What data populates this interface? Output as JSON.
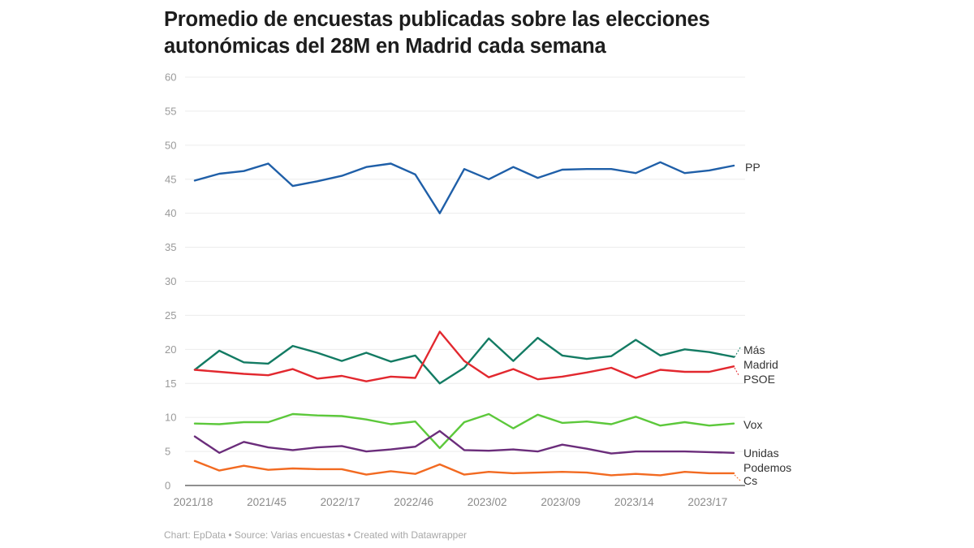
{
  "chart_data": {
    "type": "line",
    "title": "Promedio de encuestas publicadas sobre las elecciones autonómicas del 28M en Madrid cada semana",
    "xlabel": "",
    "ylabel": "",
    "ylim": [
      0,
      60
    ],
    "yticks": [
      0,
      5,
      10,
      15,
      20,
      25,
      30,
      35,
      40,
      45,
      50,
      55,
      60
    ],
    "grid": true,
    "legend": "inline-right",
    "x_tick_labels": [
      {
        "index": 0,
        "label": "2021/18"
      },
      {
        "index": 3,
        "label": "2021/45"
      },
      {
        "index": 6,
        "label": "2022/17"
      },
      {
        "index": 9,
        "label": "2022/46"
      },
      {
        "index": 12,
        "label": "2023/02"
      },
      {
        "index": 15,
        "label": "2023/09"
      },
      {
        "index": 18,
        "label": "2023/14"
      },
      {
        "index": 21,
        "label": "2023/17"
      }
    ],
    "n_points": 23,
    "series": [
      {
        "name": "PP",
        "label_lines": [
          "PP"
        ],
        "color": "#1f5fa8",
        "values": [
          44.8,
          45.8,
          46.2,
          47.3,
          44.0,
          44.7,
          45.5,
          46.8,
          47.3,
          45.7,
          40.0,
          46.5,
          45.0,
          46.8,
          45.2,
          46.4,
          46.5,
          46.5,
          45.9,
          47.5,
          45.9,
          46.3,
          47.0
        ]
      },
      {
        "name": "Más Madrid",
        "label_lines": [
          "Más",
          "Madrid"
        ],
        "color": "#137b63",
        "values": [
          17.0,
          19.8,
          18.1,
          17.9,
          20.5,
          19.5,
          18.3,
          19.5,
          18.2,
          19.1,
          15.0,
          17.3,
          21.6,
          18.3,
          21.7,
          19.1,
          18.6,
          19.0,
          21.4,
          19.1,
          20.0,
          19.6,
          18.9
        ]
      },
      {
        "name": "PSOE",
        "label_lines": [
          "PSOE"
        ],
        "color": "#e2282f",
        "values": [
          17.0,
          16.7,
          16.4,
          16.2,
          17.1,
          15.7,
          16.1,
          15.3,
          16.0,
          15.8,
          22.6,
          18.3,
          15.9,
          17.1,
          15.6,
          16.0,
          16.6,
          17.3,
          15.8,
          17.0,
          16.7,
          16.7,
          17.5
        ]
      },
      {
        "name": "Vox",
        "label_lines": [
          "Vox"
        ],
        "color": "#5cc83b",
        "values": [
          9.1,
          9.0,
          9.3,
          9.3,
          10.5,
          10.3,
          10.2,
          9.7,
          9.0,
          9.4,
          5.5,
          9.3,
          10.5,
          8.4,
          10.4,
          9.2,
          9.4,
          9.0,
          10.1,
          8.8,
          9.3,
          8.8,
          9.1
        ]
      },
      {
        "name": "Unidas Podemos",
        "label_lines": [
          "Unidas",
          "Podemos"
        ],
        "color": "#6b2d7b",
        "values": [
          7.2,
          4.8,
          6.4,
          5.6,
          5.2,
          5.6,
          5.8,
          5.0,
          5.3,
          5.7,
          8.0,
          5.2,
          5.1,
          5.3,
          5.0,
          6.0,
          5.4,
          4.7,
          5.0,
          5.0,
          5.0,
          4.9,
          4.8
        ]
      },
      {
        "name": "Cs",
        "label_lines": [
          "Cs"
        ],
        "color": "#f26a21",
        "values": [
          3.6,
          2.2,
          2.9,
          2.3,
          2.5,
          2.4,
          2.4,
          1.6,
          2.1,
          1.7,
          3.1,
          1.6,
          2.0,
          1.8,
          1.9,
          2.0,
          1.9,
          1.5,
          1.7,
          1.5,
          2.0,
          1.8,
          1.8
        ]
      }
    ]
  },
  "footer": {
    "text": "Chart: EpData • Source: Varias encuestas • Created with Datawrapper"
  }
}
